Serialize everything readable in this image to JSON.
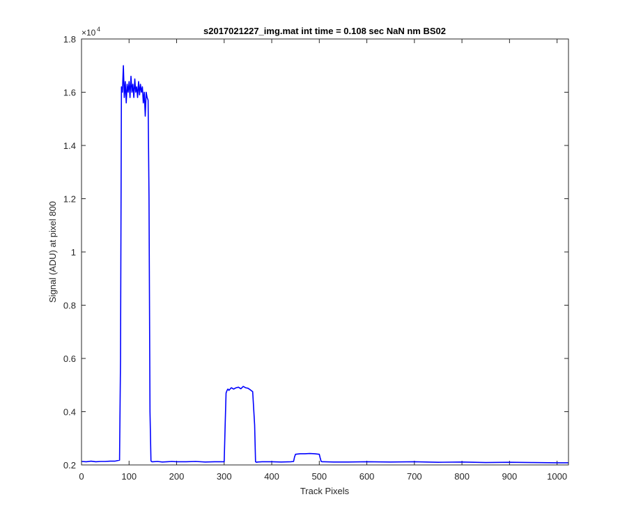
{
  "chart_data": {
    "type": "line",
    "title": "s2017021227_img.mat int time = 0.108 sec  NaN nm BS02",
    "xlabel": "Track Pixels",
    "ylabel": "Signal (ADU) at pixel 800",
    "xlim": [
      0,
      1024
    ],
    "ylim": [
      0.2,
      1.8
    ],
    "y_exponent_label": "×10",
    "y_exponent_power": "4",
    "x_ticks": [
      0,
      100,
      200,
      300,
      400,
      500,
      600,
      700,
      800,
      900,
      1000
    ],
    "x_tick_labels": [
      "0",
      "100",
      "200",
      "300",
      "400",
      "500",
      "600",
      "700",
      "800",
      "900",
      "1000"
    ],
    "y_ticks": [
      0.2,
      0.4,
      0.6,
      0.8,
      1.0,
      1.2,
      1.4,
      1.6,
      1.8
    ],
    "y_tick_labels": [
      "0.2",
      "0.4",
      "0.6",
      "0.8",
      "1",
      "1.2",
      "1.4",
      "1.6",
      "1.8"
    ],
    "grid": false,
    "series": [
      {
        "color": "#0000ff",
        "x": [
          0,
          10,
          20,
          30,
          40,
          50,
          60,
          70,
          80,
          82,
          84,
          86,
          88,
          90,
          92,
          94,
          96,
          98,
          100,
          102,
          104,
          106,
          108,
          110,
          112,
          114,
          116,
          118,
          120,
          122,
          124,
          126,
          128,
          130,
          132,
          134,
          136,
          138,
          140,
          142,
          144,
          146,
          148,
          150,
          160,
          170,
          180,
          190,
          200,
          220,
          240,
          260,
          280,
          300,
          302,
          304,
          306,
          308,
          310,
          315,
          320,
          325,
          330,
          335,
          340,
          345,
          350,
          355,
          360,
          364,
          366,
          368,
          370,
          380,
          400,
          420,
          440,
          446,
          448,
          450,
          460,
          470,
          480,
          490,
          500,
          502,
          504,
          506,
          510,
          530,
          560,
          600,
          650,
          700,
          750,
          800,
          850,
          900,
          950,
          1000,
          1024
        ],
        "y": [
          0.213,
          0.212,
          0.214,
          0.212,
          0.213,
          0.213,
          0.214,
          0.214,
          0.218,
          0.6,
          1.62,
          1.6,
          1.7,
          1.58,
          1.64,
          1.56,
          1.63,
          1.6,
          1.64,
          1.58,
          1.66,
          1.6,
          1.63,
          1.58,
          1.65,
          1.6,
          1.62,
          1.58,
          1.64,
          1.59,
          1.63,
          1.6,
          1.62,
          1.56,
          1.6,
          1.51,
          1.6,
          1.58,
          1.57,
          1.2,
          0.4,
          0.215,
          0.212,
          0.212,
          0.213,
          0.211,
          0.212,
          0.213,
          0.212,
          0.212,
          0.213,
          0.211,
          0.212,
          0.212,
          0.35,
          0.47,
          0.48,
          0.485,
          0.48,
          0.49,
          0.485,
          0.49,
          0.492,
          0.486,
          0.495,
          0.49,
          0.488,
          0.482,
          0.475,
          0.35,
          0.212,
          0.21,
          0.211,
          0.212,
          0.212,
          0.211,
          0.212,
          0.213,
          0.23,
          0.24,
          0.242,
          0.242,
          0.243,
          0.242,
          0.24,
          0.225,
          0.213,
          0.212,
          0.212,
          0.211,
          0.211,
          0.212,
          0.211,
          0.212,
          0.21,
          0.211,
          0.209,
          0.21,
          0.209,
          0.208,
          0.208
        ]
      }
    ]
  }
}
